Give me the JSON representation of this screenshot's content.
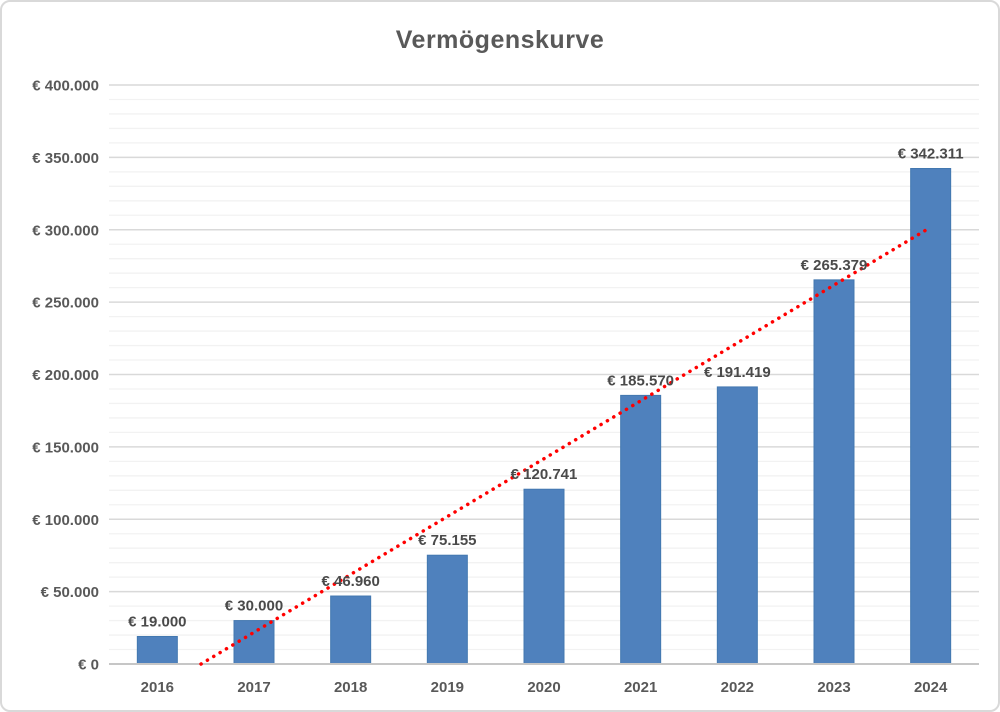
{
  "chart_data": {
    "type": "bar",
    "title": "Vermögenskurve",
    "categories": [
      "2016",
      "2017",
      "2018",
      "2019",
      "2020",
      "2021",
      "2022",
      "2023",
      "2024"
    ],
    "values": [
      19000,
      30000,
      46960,
      75155,
      120741,
      185570,
      191419,
      265379,
      342311
    ],
    "value_labels": [
      "€ 19.000",
      "€ 30.000",
      "€ 46.960",
      "€ 75.155",
      "€ 120.741",
      "€ 185.570",
      "€ 191.419",
      "€ 265.379",
      "€ 342.311"
    ],
    "xlabel": "",
    "ylabel": "",
    "ylim": [
      0,
      400000
    ],
    "y_major_step": 50000,
    "y_minor_step": 10000,
    "y_tick_labels": [
      "€ 0",
      "€ 50.000",
      "€ 100.000",
      "€ 150.000",
      "€ 200.000",
      "€ 250.000",
      "€ 300.000",
      "€ 350.000",
      "€ 400.000"
    ],
    "grid": true,
    "legend": "none",
    "trendline": {
      "style": "dotted",
      "color": "#ff0000",
      "start": {
        "category_position": 1.452,
        "value": 0
      },
      "end": {
        "category_position": 9,
        "value": 301750
      }
    },
    "colors": {
      "bar": "#4f81bd",
      "bar_edge": "#4378b0",
      "major_grid": "#d9d9d9",
      "minor_grid": "#f2f2f2",
      "axis_line": "#c6c6c6",
      "text": "#595959",
      "background": "#ffffff",
      "border": "#d9d9d9"
    }
  }
}
